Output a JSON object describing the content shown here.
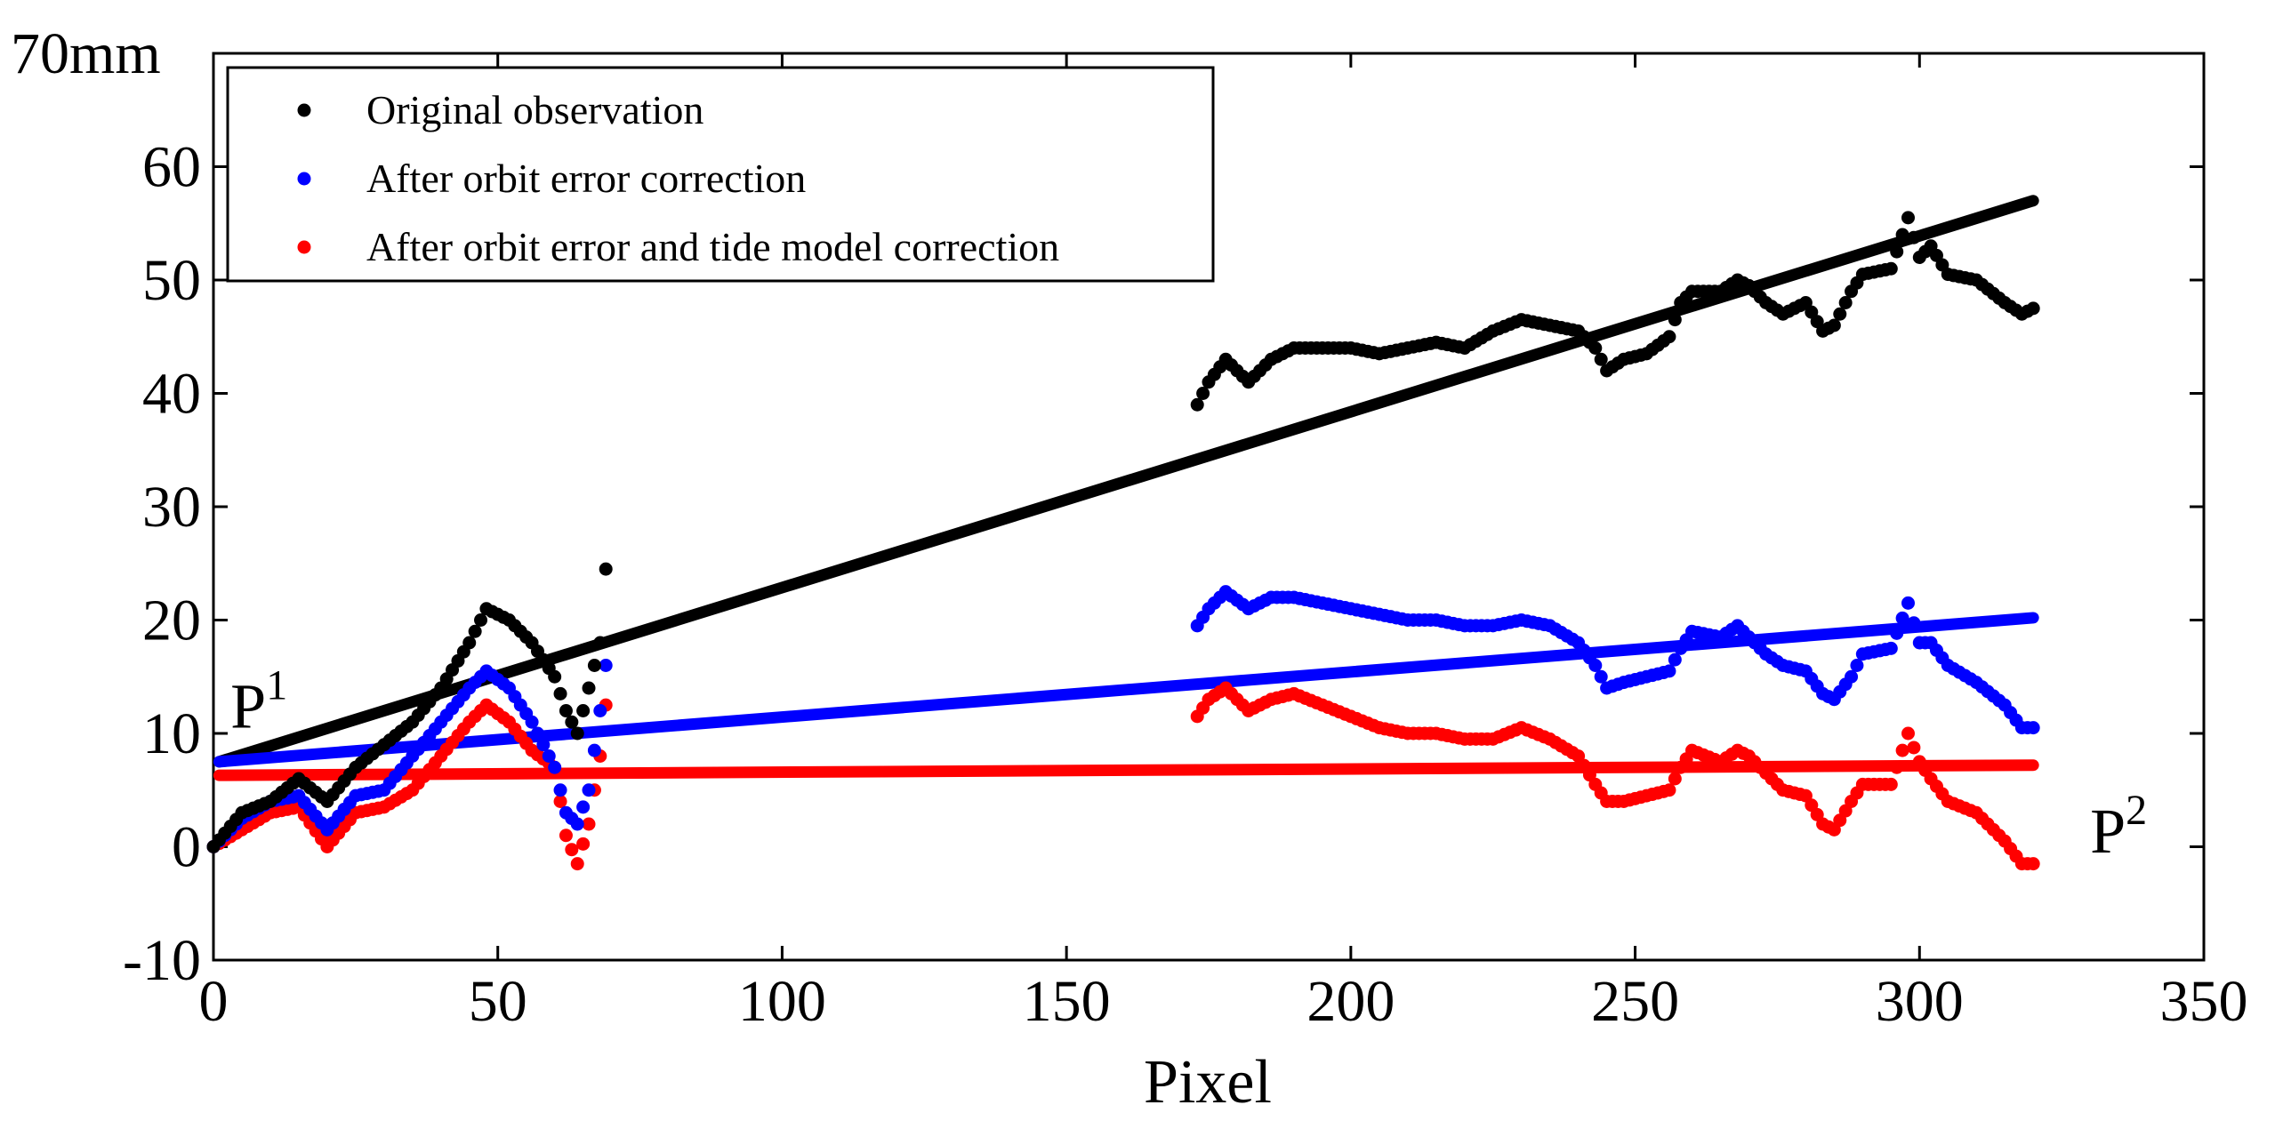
{
  "chart_data": {
    "type": "scatter",
    "title": "",
    "xlabel": "Pixel",
    "ylabel": "",
    "xlim": [
      0,
      350
    ],
    "ylim": [
      -10,
      70
    ],
    "xticks": [
      0,
      50,
      100,
      150,
      200,
      250,
      300,
      350
    ],
    "yticks": [
      -10,
      0,
      10,
      20,
      30,
      40,
      50,
      60,
      70
    ],
    "ytick_labels": [
      "-10",
      "0",
      "10",
      "20",
      "30",
      "40",
      "50",
      "60",
      "70mm"
    ],
    "xtick_labels": [
      "0",
      "50",
      "100",
      "150",
      "200",
      "250",
      "300",
      "350"
    ],
    "legend_position": "top-left",
    "annotations": [
      {
        "base": "P",
        "sup": "1",
        "x": 3,
        "y": 10.5
      },
      {
        "base": "P",
        "sup": "2",
        "x": 330,
        "y": -0.5
      }
    ],
    "series": [
      {
        "name": "Original observation",
        "color": "#000000",
        "fit_line": {
          "x": [
            1,
            320
          ],
          "y": [
            7.5,
            57
          ]
        },
        "segments": [
          {
            "x": [
              0,
              5,
              10,
              15,
              20,
              25,
              30,
              35,
              40,
              45,
              48,
              52,
              56,
              60,
              62,
              64,
              66,
              68,
              69
            ],
            "y": [
              0,
              3,
              4,
              6,
              4,
              7,
              9,
              11,
              14,
              18,
              21,
              20,
              18,
              15,
              12,
              10,
              14,
              18,
              24.5
            ]
          },
          {
            "x": [
              173,
              175,
              178,
              182,
              186,
              190,
              195,
              200,
              205,
              210,
              215,
              220,
              225,
              230,
              235,
              240,
              243,
              245,
              248,
              252,
              256,
              258,
              260,
              265,
              268,
              270,
              273,
              276,
              280,
              283,
              285,
              288,
              290,
              295,
              298,
              300,
              302,
              305,
              310,
              315,
              318,
              320
            ],
            "y": [
              39,
              41,
              43,
              41,
              43,
              44,
              44,
              44,
              43.5,
              44,
              44.5,
              44,
              45.5,
              46.5,
              46,
              45.5,
              44,
              42,
              43,
              43.5,
              45,
              48,
              49,
              49,
              50,
              49.5,
              48,
              47,
              48,
              45.5,
              46,
              49,
              50.5,
              51,
              55.5,
              52,
              53,
              50.5,
              50,
              48,
              47,
              47.5
            ]
          }
        ]
      },
      {
        "name": "After orbit error correction",
        "color": "#0000ff",
        "fit_line": {
          "x": [
            1,
            320
          ],
          "y": [
            7.5,
            20.2
          ]
        },
        "segments": [
          {
            "x": [
              0,
              5,
              10,
              15,
              20,
              25,
              30,
              35,
              40,
              45,
              48,
              52,
              56,
              60,
              62,
              64,
              66,
              68,
              69
            ],
            "y": [
              0,
              2.5,
              4,
              4.5,
              1.5,
              4.5,
              5,
              8,
              11,
              14,
              15.5,
              14,
              11,
              7,
              3,
              2,
              5,
              12,
              16
            ]
          },
          {
            "x": [
              173,
              175,
              178,
              182,
              186,
              190,
              195,
              200,
              205,
              210,
              215,
              220,
              225,
              230,
              235,
              240,
              243,
              245,
              248,
              252,
              256,
              258,
              260,
              265,
              268,
              270,
              273,
              276,
              280,
              283,
              285,
              288,
              290,
              295,
              298,
              300,
              302,
              305,
              310,
              315,
              318,
              320
            ],
            "y": [
              19.5,
              21,
              22.5,
              21,
              22,
              22,
              21.5,
              21,
              20.5,
              20,
              20,
              19.5,
              19.5,
              20,
              19.5,
              18,
              16,
              14,
              14.5,
              15,
              15.5,
              17.5,
              19,
              18.5,
              19.5,
              18.5,
              17,
              16,
              15.5,
              13.5,
              13,
              15,
              17,
              17.5,
              21.5,
              18,
              18,
              16,
              14.5,
              12.5,
              10.5,
              10.5
            ]
          }
        ]
      },
      {
        "name": "After orbit error and tide model correction",
        "color": "#ff0000",
        "fit_line": {
          "x": [
            1,
            320
          ],
          "y": [
            6.3,
            7.2
          ]
        },
        "segments": [
          {
            "x": [
              0,
              5,
              10,
              15,
              20,
              25,
              30,
              35,
              40,
              45,
              48,
              52,
              56,
              60,
              62,
              64,
              66,
              68,
              69
            ],
            "y": [
              0,
              1.5,
              3,
              3.5,
              0,
              3,
              3.5,
              5,
              8,
              11,
              12.5,
              11,
              8.5,
              7,
              1,
              -1.5,
              2,
              8,
              12.5
            ]
          },
          {
            "x": [
              173,
              175,
              178,
              182,
              186,
              190,
              195,
              200,
              205,
              210,
              215,
              220,
              225,
              230,
              235,
              240,
              243,
              245,
              248,
              252,
              256,
              258,
              260,
              265,
              268,
              270,
              273,
              276,
              280,
              283,
              285,
              288,
              290,
              295,
              298,
              300,
              302,
              305,
              310,
              315,
              318,
              320
            ],
            "y": [
              11.5,
              13,
              14,
              12,
              13,
              13.5,
              12.5,
              11.5,
              10.5,
              10,
              10,
              9.5,
              9.5,
              10.5,
              9.5,
              8,
              5.5,
              4,
              4,
              4.5,
              5,
              7,
              8.5,
              7.5,
              8.5,
              8,
              6.5,
              5,
              4.5,
              2,
              1.5,
              4,
              5.5,
              5.5,
              10,
              7.5,
              6,
              4,
              3,
              0.5,
              -1.5,
              -1.5
            ]
          }
        ]
      }
    ]
  }
}
